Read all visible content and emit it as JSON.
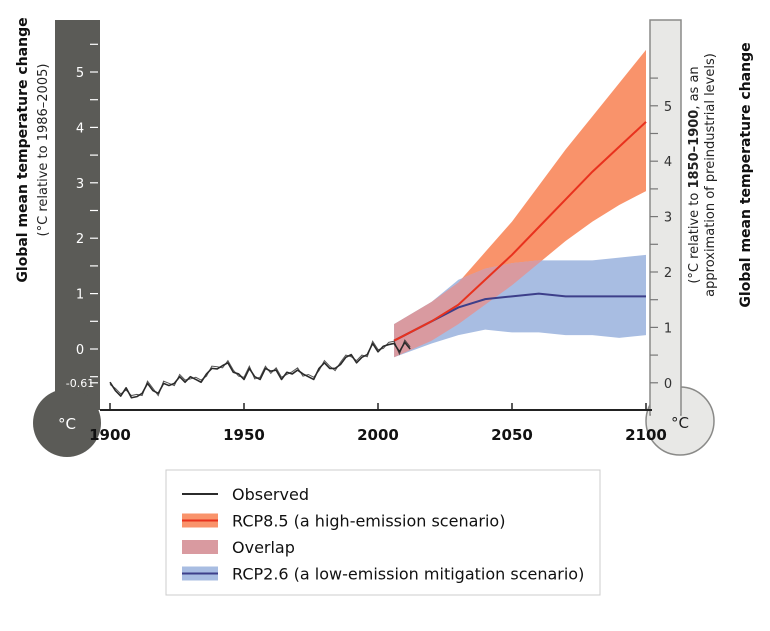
{
  "chart_data": {
    "type": "line",
    "left_axis": {
      "title": "Global mean temperature change",
      "subtitle": "(°C relative to 1986–2005)",
      "ticks": [
        0,
        1,
        2,
        3,
        4,
        5
      ],
      "tick_labels": [
        "0",
        "1",
        "2",
        "3",
        "4",
        "5"
      ],
      "extra_label": "-0.61",
      "unit": "°C",
      "color": "#5b5b57"
    },
    "right_axis": {
      "title": "Global mean temperature change",
      "subtitle_line1_a": "(°C relative to ",
      "subtitle_line1_b": "1850–1900",
      "subtitle_line1_c": ", as an",
      "subtitle_line2": "approximation of preindustrial levels)",
      "ticks": [
        0,
        1,
        2,
        3,
        4,
        5
      ],
      "tick_labels": [
        "0",
        "1",
        "2",
        "3",
        "4",
        "5"
      ],
      "offset_from_left": 0.61,
      "unit": "°C",
      "color": "#e8e8e6"
    },
    "x_axis": {
      "ticks": [
        1900,
        1950,
        2000,
        2050,
        2100
      ],
      "tick_labels": [
        "1900",
        "1950",
        "2000",
        "2050",
        "2100"
      ],
      "range": [
        1900,
        2100
      ]
    },
    "y_range": [
      -0.61,
      5.6
    ],
    "series": [
      {
        "name": "Observed",
        "color": "#2b2b2b",
        "x": [
          1900,
          1902,
          1904,
          1906,
          1908,
          1910,
          1912,
          1914,
          1916,
          1918,
          1920,
          1922,
          1924,
          1926,
          1928,
          1930,
          1932,
          1934,
          1936,
          1938,
          1940,
          1942,
          1944,
          1946,
          1948,
          1950,
          1952,
          1954,
          1956,
          1958,
          1960,
          1962,
          1964,
          1966,
          1968,
          1970,
          1972,
          1974,
          1976,
          1978,
          1980,
          1982,
          1984,
          1986,
          1988,
          1990,
          1992,
          1994,
          1996,
          1998,
          2000,
          2002,
          2004,
          2006,
          2008,
          2010,
          2012
        ],
        "y": [
          -0.6,
          -0.75,
          -0.85,
          -0.7,
          -0.88,
          -0.86,
          -0.8,
          -0.62,
          -0.75,
          -0.8,
          -0.62,
          -0.66,
          -0.62,
          -0.5,
          -0.6,
          -0.5,
          -0.55,
          -0.6,
          -0.45,
          -0.35,
          -0.36,
          -0.3,
          -0.25,
          -0.42,
          -0.45,
          -0.55,
          -0.35,
          -0.5,
          -0.55,
          -0.35,
          -0.4,
          -0.38,
          -0.55,
          -0.42,
          -0.45,
          -0.38,
          -0.45,
          -0.5,
          -0.55,
          -0.35,
          -0.25,
          -0.35,
          -0.35,
          -0.28,
          -0.15,
          -0.1,
          -0.25,
          -0.15,
          -0.1,
          0.1,
          -0.05,
          0.05,
          0.08,
          0.1,
          -0.05,
          0.12,
          0.0
        ]
      },
      {
        "name": "RCP8.5 (a high-emission scenario)",
        "color": "#e8321e",
        "band_color": "#f9936b",
        "x": [
          2006,
          2020,
          2030,
          2040,
          2050,
          2060,
          2070,
          2080,
          2090,
          2100
        ],
        "y": [
          0.15,
          0.5,
          0.8,
          1.25,
          1.7,
          2.2,
          2.7,
          3.2,
          3.65,
          4.1
        ],
        "lower": [
          -0.15,
          0.15,
          0.45,
          0.8,
          1.15,
          1.55,
          1.95,
          2.3,
          2.6,
          2.85
        ],
        "upper": [
          0.45,
          0.85,
          1.2,
          1.75,
          2.3,
          2.95,
          3.6,
          4.2,
          4.8,
          5.4
        ]
      },
      {
        "name": "RCP2.6 (a low-emission mitigation scenario)",
        "color": "#3d3f8a",
        "band_color": "#a8bde2",
        "x": [
          2006,
          2020,
          2030,
          2040,
          2050,
          2060,
          2070,
          2080,
          2090,
          2100
        ],
        "y": [
          0.15,
          0.5,
          0.75,
          0.9,
          0.95,
          1.0,
          0.95,
          0.95,
          0.95,
          0.95
        ],
        "lower": [
          -0.15,
          0.1,
          0.25,
          0.35,
          0.3,
          0.3,
          0.25,
          0.25,
          0.2,
          0.25
        ],
        "upper": [
          0.45,
          0.85,
          1.25,
          1.45,
          1.55,
          1.6,
          1.6,
          1.6,
          1.65,
          1.7
        ]
      }
    ],
    "overlap": {
      "name": "Overlap",
      "color": "#d99aa0"
    },
    "legend": {
      "position": "bottom",
      "items": [
        {
          "label": "Observed",
          "kind": "line",
          "color": "#2b2b2b"
        },
        {
          "label": "RCP8.5 (a high-emission scenario)",
          "kind": "band-line",
          "color": "#e8321e",
          "band": "#f9936b"
        },
        {
          "label": "Overlap",
          "kind": "band",
          "band": "#d99aa0"
        },
        {
          "label": "RCP2.6 (a low-emission mitigation scenario)",
          "kind": "band-line",
          "color": "#3d3f8a",
          "band": "#a8bde2"
        }
      ]
    }
  }
}
